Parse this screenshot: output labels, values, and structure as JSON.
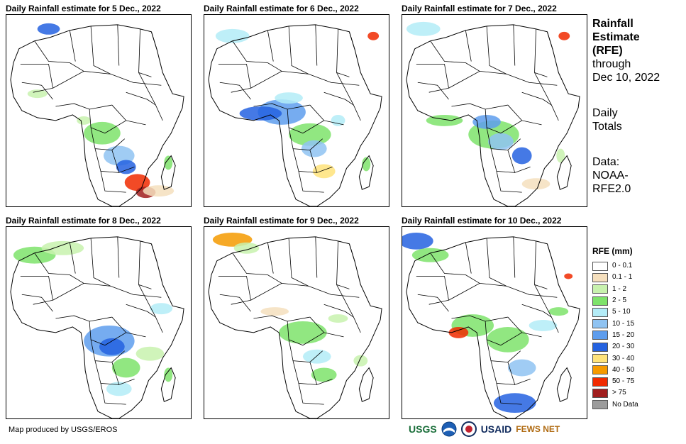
{
  "panels": [
    {
      "title": "Daily Rainfall estimate for 5 Dec., 2022"
    },
    {
      "title": "Daily Rainfall estimate for 6 Dec., 2022"
    },
    {
      "title": "Daily Rainfall estimate for 7 Dec., 2022"
    },
    {
      "title": "Daily Rainfall estimate for 8 Dec., 2022"
    },
    {
      "title": "Daily Rainfall estimate for 9 Dec., 2022"
    },
    {
      "title": "Daily Rainfall estimate for 10 Dec., 2022"
    }
  ],
  "sidebar": {
    "title_line1": "Rainfall",
    "title_line2": "Estimate",
    "title_line3": "(RFE)",
    "through_label": "through",
    "through_date": "Dec 10, 2022",
    "totals_line1": "Daily",
    "totals_line2": "Totals",
    "data_line1": "Data:",
    "data_line2": "NOAA-",
    "data_line3": "RFE2.0"
  },
  "legend": {
    "title": "RFE (mm)",
    "items": [
      {
        "label": "0 - 0.1",
        "color": "#ffffff"
      },
      {
        "label": "0.1 - 1",
        "color": "#f5dfbd"
      },
      {
        "label": "1 - 2",
        "color": "#c8f2ae"
      },
      {
        "label": "2 - 5",
        "color": "#7ee36b"
      },
      {
        "label": "5 - 10",
        "color": "#b3ecf7"
      },
      {
        "label": "10 - 15",
        "color": "#8fc3f2"
      },
      {
        "label": "15 - 20",
        "color": "#5e9ded"
      },
      {
        "label": "20 - 30",
        "color": "#2462e0"
      },
      {
        "label": "30 - 40",
        "color": "#ffe37a"
      },
      {
        "label": "40 - 50",
        "color": "#f59a00"
      },
      {
        "label": "50 - 75",
        "color": "#f02a00"
      },
      {
        "label": "> 75",
        "color": "#a11f1f"
      },
      {
        "label": "No Data",
        "color": "#9b9b9b"
      }
    ]
  },
  "footer": {
    "credit": "Map produced by USGS/EROS",
    "logos": [
      "USGS",
      "NOAA",
      "USAID",
      "FEWS NET"
    ]
  }
}
